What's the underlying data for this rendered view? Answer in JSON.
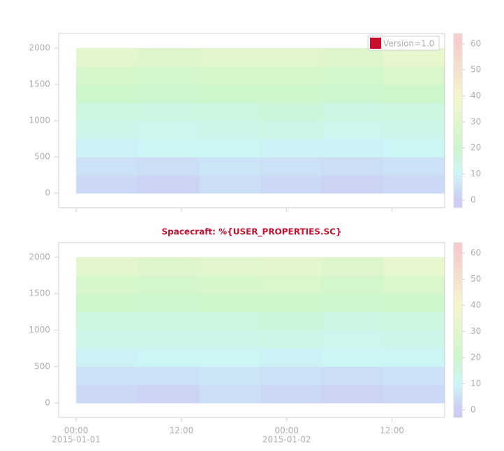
{
  "chart_data": [
    {
      "type": "heatmap",
      "x_edges": [
        0,
        7,
        14,
        21,
        28,
        35,
        42
      ],
      "y_edges": [
        0,
        250,
        500,
        750,
        1000,
        1250,
        1500,
        1750,
        2000
      ],
      "z": [
        [
          3,
          2,
          4,
          3,
          2,
          3
        ],
        [
          5,
          4,
          6,
          5,
          4,
          5
        ],
        [
          9,
          10,
          10,
          9,
          9,
          10
        ],
        [
          13,
          12,
          13,
          14,
          12,
          13
        ],
        [
          16,
          15,
          16,
          17,
          15,
          16
        ],
        [
          20,
          19,
          20,
          21,
          19,
          21
        ],
        [
          25,
          24,
          25,
          25,
          24,
          26
        ],
        [
          31,
          29,
          30,
          30,
          29,
          33
        ]
      ],
      "xlim": [
        -2,
        42
      ],
      "ylim": [
        -200,
        2200
      ],
      "xticks": [
        0,
        12,
        24,
        36
      ],
      "yticks": [
        0,
        500,
        1000,
        1500,
        2000
      ],
      "clim": [
        -3,
        64
      ],
      "cticks": [
        0,
        10,
        20,
        30,
        40,
        50,
        60
      ],
      "colorscale": [
        [
          0,
          "#ccccf6"
        ],
        [
          10,
          "#ccf6f6"
        ],
        [
          20,
          "#ccf6cc"
        ],
        [
          40,
          "#f6f6cc"
        ],
        [
          60,
          "#f6cccc"
        ]
      ],
      "legend": {
        "label": "Version=1.0",
        "color": "#c8102e",
        "corner": "upper right"
      }
    },
    {
      "type": "heatmap",
      "title": "Spacecraft: %{USER_PROPERTIES.SC}",
      "x_edges": [
        0,
        7,
        14,
        21,
        28,
        35,
        42
      ],
      "y_edges": [
        0,
        250,
        500,
        750,
        1000,
        1250,
        1500,
        1750,
        2000
      ],
      "z": [
        [
          3,
          2,
          4,
          3,
          2,
          3
        ],
        [
          5,
          5,
          6,
          5,
          4,
          5
        ],
        [
          9,
          10,
          10,
          9,
          10,
          10
        ],
        [
          13,
          13,
          13,
          14,
          12,
          13
        ],
        [
          16,
          16,
          16,
          17,
          15,
          16
        ],
        [
          20,
          19,
          21,
          21,
          19,
          21
        ],
        [
          25,
          24,
          25,
          26,
          24,
          26
        ],
        [
          31,
          29,
          30,
          31,
          29,
          33
        ]
      ],
      "xlim": [
        -2,
        42
      ],
      "ylim": [
        -200,
        2200
      ],
      "xticks": [
        {
          "value": 0,
          "label": "00:00",
          "sublabel": "2015-01-01"
        },
        {
          "value": 12,
          "label": "12:00"
        },
        {
          "value": 24,
          "label": "00:00",
          "sublabel": "2015-01-02"
        },
        {
          "value": 36,
          "label": "12:00"
        }
      ],
      "yticks": [
        0,
        500,
        1000,
        1500,
        2000
      ],
      "clim": [
        -3,
        64
      ],
      "cticks": [
        0,
        10,
        20,
        30,
        40,
        50,
        60
      ],
      "colorscale": [
        [
          0,
          "#ccccf6"
        ],
        [
          10,
          "#ccf6f6"
        ],
        [
          20,
          "#ccf6cc"
        ],
        [
          40,
          "#f6f6cc"
        ],
        [
          60,
          "#f6cccc"
        ]
      ]
    }
  ]
}
